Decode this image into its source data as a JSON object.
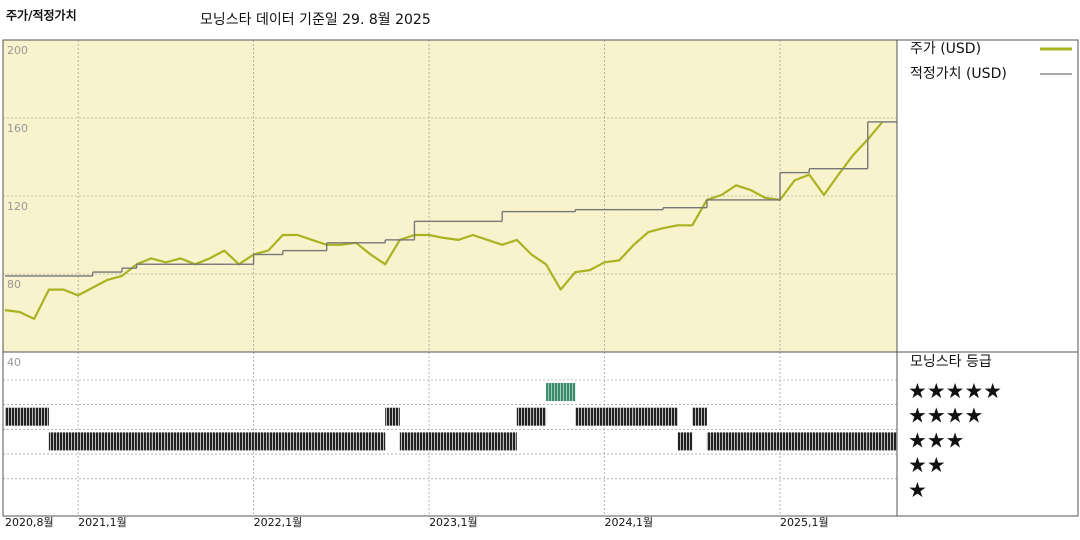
{
  "chart_data": {
    "type": "line",
    "title": "주가/적정가치",
    "subtitle": "모닝스타 데이터 기준일 29. 8월 2025",
    "x": [
      "2020-08",
      "2020-09",
      "2020-10",
      "2020-11",
      "2020-12",
      "2021-01",
      "2021-02",
      "2021-03",
      "2021-04",
      "2021-05",
      "2021-06",
      "2021-07",
      "2021-08",
      "2021-09",
      "2021-10",
      "2021-11",
      "2021-12",
      "2022-01",
      "2022-02",
      "2022-03",
      "2022-04",
      "2022-05",
      "2022-06",
      "2022-07",
      "2022-08",
      "2022-09",
      "2022-10",
      "2022-11",
      "2022-12",
      "2023-01",
      "2023-02",
      "2023-03",
      "2023-04",
      "2023-05",
      "2023-06",
      "2023-07",
      "2023-08",
      "2023-09",
      "2023-10",
      "2023-11",
      "2023-12",
      "2024-01",
      "2024-02",
      "2024-03",
      "2024-04",
      "2024-05",
      "2024-06",
      "2024-07",
      "2024-08",
      "2024-09",
      "2024-10",
      "2024-11",
      "2024-12",
      "2025-01",
      "2025-02",
      "2025-03",
      "2025-04",
      "2025-05",
      "2025-06",
      "2025-07",
      "2025-08"
    ],
    "xlim": [
      "2020-08",
      "2025-09"
    ],
    "xticks": [
      {
        "value": "2020-08",
        "label": "2020,8월"
      },
      {
        "value": "2021-01",
        "label": "2021,1월"
      },
      {
        "value": "2022-01",
        "label": "2022,1월"
      },
      {
        "value": "2023-01",
        "label": "2023,1월"
      },
      {
        "value": "2024-01",
        "label": "2024,1월"
      },
      {
        "value": "2025-01",
        "label": "2025,1월"
      }
    ],
    "series": [
      {
        "name": "주가 (USD)",
        "color": "#a9b322",
        "values": [
          61.5,
          60.5,
          57,
          72,
          72,
          69,
          73,
          77,
          79,
          85,
          88,
          86,
          88,
          85,
          88,
          92,
          85,
          90,
          92,
          100,
          100,
          97.5,
          95,
          95,
          96,
          90,
          85,
          97.5,
          100,
          100,
          98.5,
          97.5,
          100,
          97.5,
          95,
          97.5,
          90,
          85,
          72,
          81,
          82,
          86,
          87,
          95,
          101.5,
          103.5,
          105,
          105,
          118,
          120.5,
          125.5,
          123,
          119,
          118,
          128,
          131,
          120.5,
          131,
          141,
          149,
          158
        ]
      },
      {
        "name": "적정가치 (USD)",
        "color": "#777777",
        "step": true,
        "values": [
          79,
          79,
          79,
          79,
          79,
          79,
          81,
          81,
          83,
          85,
          85,
          85,
          85,
          85,
          85,
          85,
          85,
          90,
          90,
          92,
          92,
          92,
          96,
          96,
          96,
          96,
          97.5,
          97.5,
          107,
          107,
          107,
          107,
          107,
          107,
          112,
          112,
          112,
          112,
          112,
          113,
          113,
          113,
          113,
          113,
          113,
          114,
          114,
          114,
          118,
          118,
          118,
          118,
          118,
          132,
          132,
          134,
          134,
          134,
          134,
          158,
          158
        ]
      }
    ],
    "ylim": [
      40,
      200
    ],
    "yticks": [
      40,
      80,
      120,
      160,
      200
    ],
    "grid": true,
    "ratings": {
      "title": "모닝스타 등급",
      "values": [
        4,
        4,
        4,
        3,
        3,
        3,
        3,
        3,
        3,
        3,
        3,
        3,
        3,
        3,
        3,
        3,
        3,
        3,
        3,
        3,
        3,
        3,
        3,
        3,
        3,
        3,
        4,
        3,
        3,
        3,
        3,
        3,
        3,
        3,
        3,
        4,
        4,
        5,
        5,
        4,
        4,
        4,
        4,
        4,
        4,
        4,
        3,
        4,
        3,
        3,
        3,
        3,
        3,
        3,
        3,
        3,
        3,
        3,
        3,
        3,
        3
      ],
      "levels": [
        {
          "value": 5,
          "label": "★★★★★"
        },
        {
          "value": 4,
          "label": "★★★★"
        },
        {
          "value": 3,
          "label": "★★★"
        },
        {
          "value": 2,
          "label": "★★"
        },
        {
          "value": 1,
          "label": "★"
        }
      ],
      "colors": {
        "default": "#222222",
        "top": "#3a8c6c"
      }
    }
  }
}
